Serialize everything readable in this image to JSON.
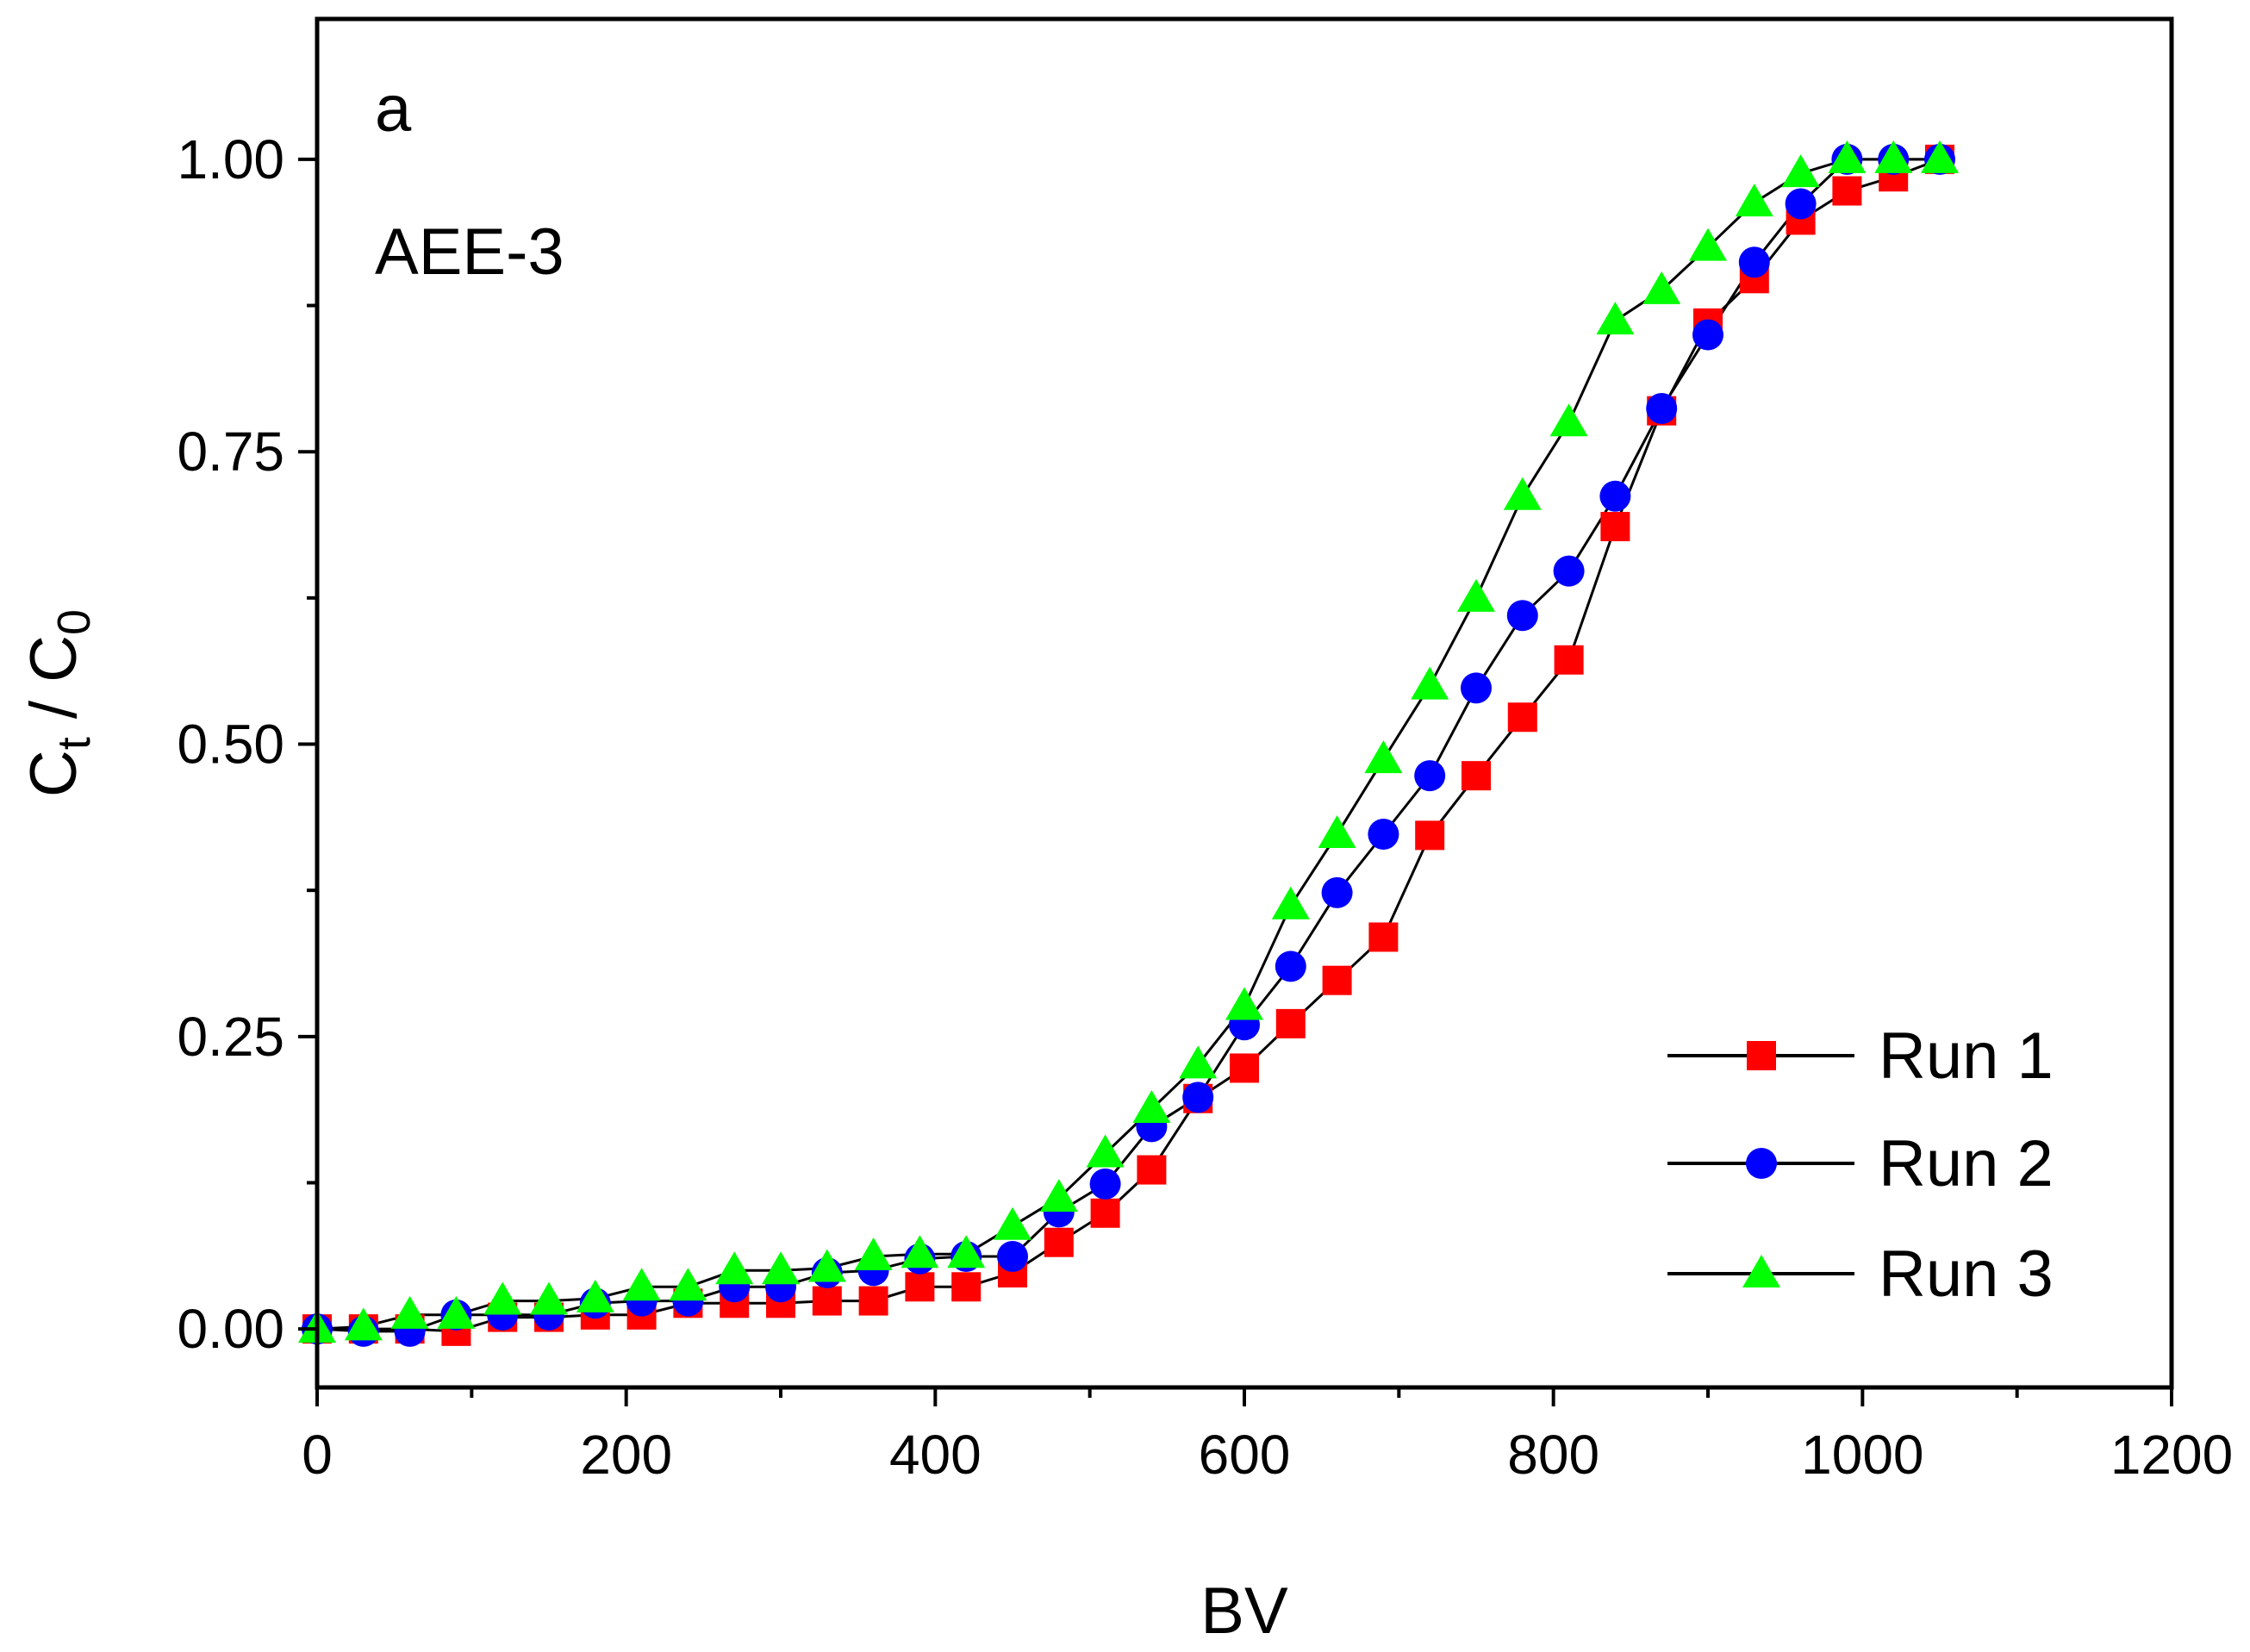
{
  "chart_data": {
    "type": "line",
    "title": "",
    "panel_label": "a",
    "annotation": "AEE-3",
    "xlabel": "BV",
    "ylabel_main": "C",
    "ylabel_sub1": "t",
    "ylabel_mid": " / C",
    "ylabel_sub2": "0",
    "xlim": [
      0,
      1200
    ],
    "ylim": [
      -0.05,
      1.12
    ],
    "xticks": [
      0,
      200,
      400,
      600,
      800,
      1000,
      1200
    ],
    "xtick_labels": [
      "0",
      "200",
      "400",
      "600",
      "800",
      "1000",
      "1200"
    ],
    "yticks": [
      0,
      0.25,
      0.5,
      0.75,
      1.0
    ],
    "ytick_labels": [
      "0.00",
      "0.25",
      "0.50",
      "0.75",
      "1.00"
    ],
    "legend_position": "bottom-right",
    "x": [
      0,
      30,
      60,
      90,
      120,
      150,
      180,
      210,
      240,
      270,
      300,
      330,
      360,
      390,
      420,
      450,
      480,
      510,
      540,
      570,
      600,
      630,
      660,
      690,
      720,
      750,
      780,
      810,
      840,
      870,
      900,
      930,
      960,
      990,
      1020,
      1050
    ],
    "series": [
      {
        "name": "Run 1",
        "marker": "square",
        "color": "#ff0000",
        "values": [
          0.0,
          0.0,
          0.0,
          -0.002,
          0.01,
          0.01,
          0.012,
          0.012,
          0.022,
          0.022,
          0.022,
          0.024,
          0.024,
          0.036,
          0.036,
          0.048,
          0.074,
          0.099,
          0.136,
          0.197,
          0.223,
          0.261,
          0.298,
          0.335,
          0.422,
          0.473,
          0.523,
          0.572,
          0.686,
          0.785,
          0.86,
          0.898,
          0.948,
          0.973,
          0.985,
          1.0
        ]
      },
      {
        "name": "Run 2",
        "marker": "circle",
        "color": "#0000ff",
        "values": [
          0.0,
          -0.002,
          -0.002,
          0.012,
          0.012,
          0.012,
          0.022,
          0.024,
          0.024,
          0.036,
          0.036,
          0.048,
          0.05,
          0.06,
          0.062,
          0.062,
          0.1,
          0.124,
          0.173,
          0.198,
          0.26,
          0.31,
          0.373,
          0.423,
          0.473,
          0.548,
          0.61,
          0.648,
          0.712,
          0.787,
          0.85,
          0.912,
          0.962,
          1.0,
          1.0,
          1.0
        ]
      },
      {
        "name": "Run 3",
        "marker": "triangle",
        "color": "#00ff00",
        "values": [
          0.0,
          0.002,
          0.012,
          0.012,
          0.024,
          0.024,
          0.026,
          0.036,
          0.036,
          0.05,
          0.05,
          0.052,
          0.062,
          0.064,
          0.064,
          0.088,
          0.112,
          0.15,
          0.188,
          0.226,
          0.276,
          0.362,
          0.423,
          0.487,
          0.55,
          0.625,
          0.712,
          0.775,
          0.862,
          0.888,
          0.925,
          0.963,
          0.988,
          1.0,
          1.0,
          1.0
        ]
      }
    ]
  }
}
